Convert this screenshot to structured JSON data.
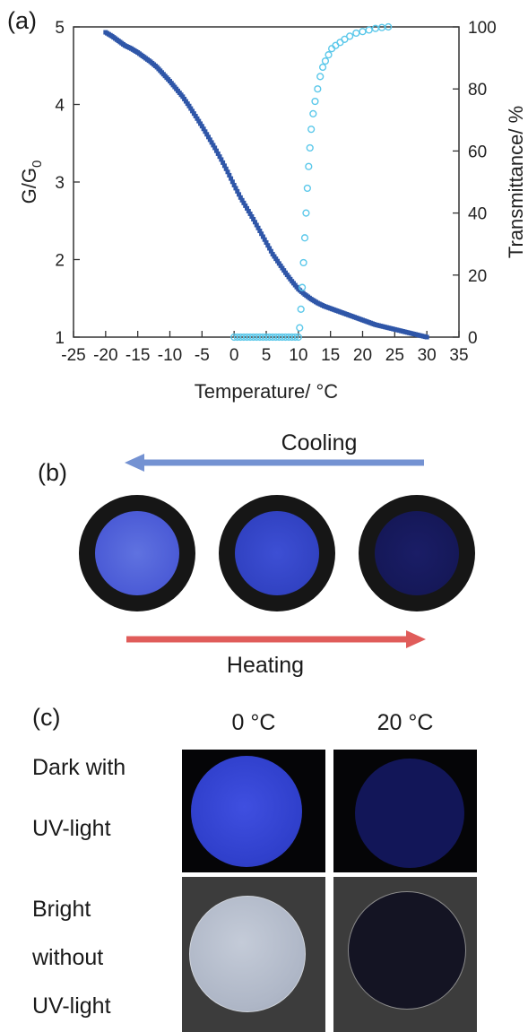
{
  "panel_a": {
    "label": "(a)",
    "chart_data": {
      "type": "scatter",
      "xlabel": "Temperature/ °C",
      "ylabel_left": "G/G0",
      "ylabel_right": "Transmittance/ %",
      "xlim": [
        -25,
        35
      ],
      "ylim_left": [
        1,
        5
      ],
      "ylim_right": [
        0,
        100
      ],
      "x_ticks": [
        "-25",
        "-20",
        "-15",
        "-10",
        "-5",
        "0",
        "5",
        "10",
        "15",
        "20",
        "25",
        "30",
        "35"
      ],
      "y_left_ticks": [
        "1",
        "2",
        "3",
        "4",
        "5"
      ],
      "y_right_ticks": [
        "0",
        "20",
        "40",
        "60",
        "80",
        "100"
      ],
      "grid": false,
      "series": [
        {
          "axis": "left",
          "marker": "filled-square",
          "color": "#2f56a8",
          "x": [
            -20,
            -19,
            -18,
            -17,
            -16,
            -15,
            -14,
            -13,
            -12,
            -11,
            -10,
            -9,
            -8,
            -7,
            -6,
            -5,
            -4,
            -3,
            -2,
            -1,
            0,
            1,
            2,
            3,
            4,
            5,
            6,
            7,
            8,
            9,
            10,
            11,
            12,
            13,
            14,
            15,
            16,
            17,
            18,
            19,
            20,
            21,
            22,
            23,
            24,
            25,
            26,
            27,
            28,
            29,
            30
          ],
          "y": [
            4.93,
            4.88,
            4.82,
            4.76,
            4.72,
            4.67,
            4.61,
            4.55,
            4.48,
            4.39,
            4.3,
            4.2,
            4.1,
            3.98,
            3.85,
            3.72,
            3.58,
            3.44,
            3.29,
            3.13,
            2.96,
            2.8,
            2.66,
            2.52,
            2.37,
            2.22,
            2.07,
            1.95,
            1.83,
            1.72,
            1.62,
            1.55,
            1.49,
            1.44,
            1.4,
            1.37,
            1.34,
            1.31,
            1.28,
            1.25,
            1.22,
            1.19,
            1.16,
            1.14,
            1.12,
            1.1,
            1.08,
            1.06,
            1.04,
            1.02,
            1.0
          ]
        },
        {
          "axis": "right",
          "marker": "open-circle",
          "color": "#5bc8ea",
          "x": [
            0,
            0.5,
            1,
            1.5,
            2,
            2.5,
            3,
            3.5,
            4,
            4.5,
            5,
            5.5,
            6,
            6.5,
            7,
            7.5,
            8,
            8.5,
            9,
            9.5,
            10,
            10.2,
            10.4,
            10.6,
            10.8,
            11,
            11.2,
            11.4,
            11.6,
            11.8,
            12,
            12.3,
            12.6,
            13,
            13.4,
            13.8,
            14.2,
            14.7,
            15.2,
            15.8,
            16.5,
            17.2,
            18,
            19,
            20,
            21,
            22,
            23,
            24
          ],
          "y": [
            0,
            0,
            0,
            0,
            0,
            0,
            0,
            0,
            0,
            0,
            0,
            0,
            0,
            0,
            0,
            0,
            0,
            0,
            0,
            0,
            0,
            3,
            9,
            16,
            24,
            32,
            40,
            48,
            55,
            61,
            67,
            72,
            76,
            80,
            84,
            87,
            89,
            91,
            93,
            94,
            95,
            96,
            97,
            98,
            98.5,
            99,
            99.5,
            99.8,
            100
          ]
        }
      ]
    }
  },
  "panel_b": {
    "label": "(b)",
    "top_arrow_label": "Cooling",
    "bottom_arrow_label": "Heating",
    "cooling_color": "#7492d2",
    "heating_color": "#e05c5a"
  },
  "panel_c": {
    "label": "(c)",
    "col_labels": [
      "0 °C",
      "20 °C"
    ],
    "row1_label_line1": "Dark with",
    "row1_label_line2": "UV-light",
    "row2_label_line1": "Bright",
    "row2_label_line2": "without",
    "row2_label_line3": "UV-light"
  }
}
